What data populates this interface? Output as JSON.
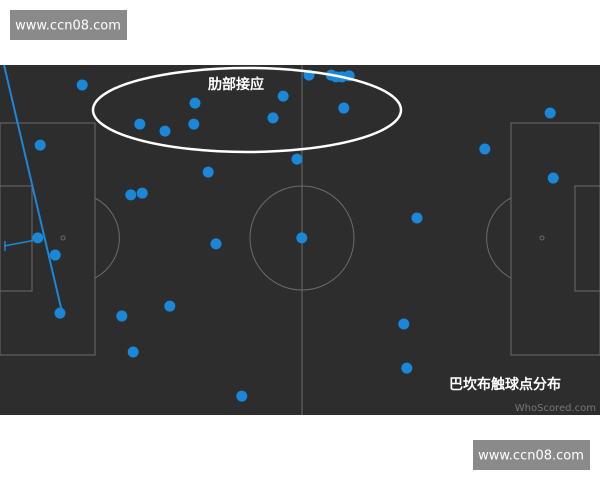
{
  "watermark_top": "www.ccn08.com",
  "watermark_bottom": "www.ccn08.com",
  "chart_data": {
    "type": "scatter",
    "title": "巴坎布触球点分布",
    "annotation": "肋部接应",
    "source": "WhoScored.com",
    "color": "#1a87d8",
    "xlim": [
      0,
      100
    ],
    "ylim": [
      0,
      100
    ],
    "x": [
      13.7,
      32.5,
      23.3,
      27.5,
      32.3,
      45.5,
      47.2,
      51.5,
      55.2,
      56,
      57,
      58.2,
      57.3,
      6.7,
      49.5,
      34.7,
      21.8,
      23.7,
      6.3,
      9.2,
      36,
      50.3,
      69.5,
      80.8,
      91.7,
      92.2,
      10,
      20.3,
      28.3,
      22.2,
      67.3,
      67.8,
      40.3
    ],
    "values": [
      5.7,
      10.9,
      16.9,
      18.9,
      16.9,
      15.1,
      8.9,
      2.9,
      2.9,
      3.4,
      3.4,
      3.1,
      12.3,
      22.9,
      26.9,
      30.6,
      37.1,
      36.6,
      49.4,
      54.3,
      51.1,
      49.4,
      43.7,
      24,
      13.7,
      32.3,
      70.9,
      71.7,
      68.9,
      82,
      74,
      86.6,
      94.6
    ]
  }
}
